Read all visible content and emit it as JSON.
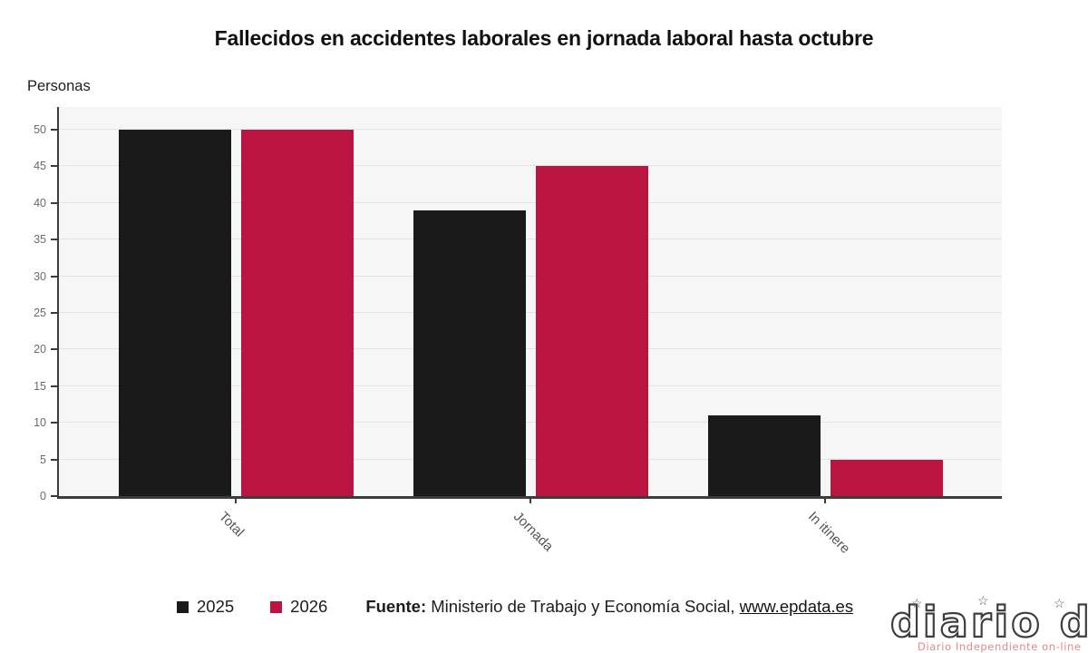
{
  "chart_data": {
    "type": "bar",
    "title": "Fallecidos en accidentes laborales en jornada laboral hasta octubre",
    "ylabel": "Personas",
    "categories": [
      "Total",
      "Jornada",
      "In itinere"
    ],
    "series": [
      {
        "name": "2025",
        "color": "#1a1a1a",
        "values": [
          50,
          39,
          11
        ]
      },
      {
        "name": "2026",
        "color": "#b91540",
        "values": [
          50,
          45,
          5
        ]
      }
    ],
    "ylim": [
      0,
      50
    ],
    "ytick_step": 5,
    "grid": true,
    "plot_background": "#f6f6f6",
    "gridline_color": "#e3e3e3",
    "legend_position": "bottom"
  },
  "legend": {
    "items": [
      {
        "label": "2025",
        "color": "#1a1a1a"
      },
      {
        "label": "2026",
        "color": "#b91540"
      }
    ]
  },
  "source": {
    "prefix": "Fuente:",
    "text": "Ministerio de Trabajo y Economía Social,",
    "link": "www.epdata.es"
  },
  "watermark": {
    "logo": "diario dia",
    "tagline": "Diario Independiente on-line",
    "tagline_color": "#e08a8a",
    "star": "☆"
  }
}
